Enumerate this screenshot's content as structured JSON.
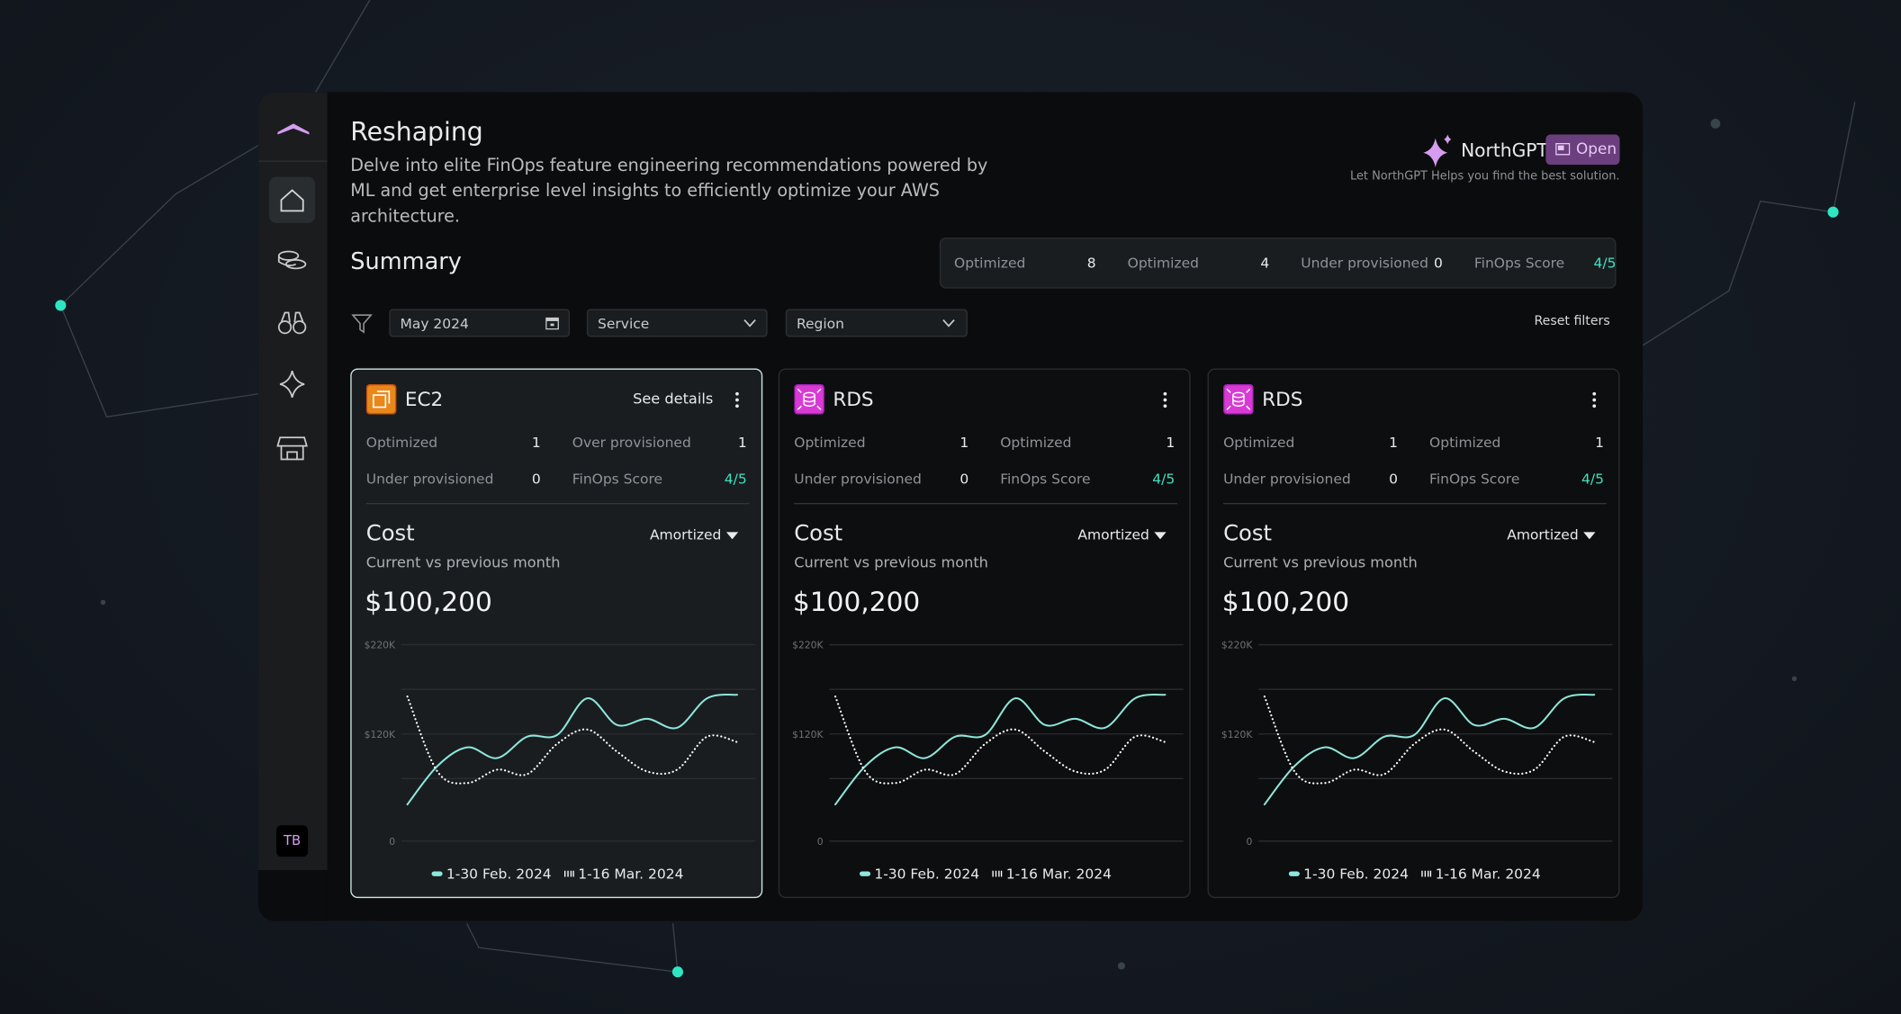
{
  "sidebar": {
    "avatar": "TB"
  },
  "header": {
    "title": "Reshaping",
    "description": "Delve into elite FinOps feature engineering recommendations powered by ML and get enterprise level insights to efficiently optimize your AWS architecture."
  },
  "assistant": {
    "name": "NorthGPT",
    "button": "Open",
    "hint": "Let NorthGPT Helps you find the best solution."
  },
  "summary": {
    "title": "Summary",
    "stats": [
      {
        "label": "Optimized",
        "value": 8
      },
      {
        "label": "Optimized",
        "value": 4
      },
      {
        "label": "Under provisioned",
        "value": 0
      },
      {
        "label": "FinOps Score",
        "value": "4/5"
      }
    ]
  },
  "filters": {
    "date": "May 2024",
    "service": "Service",
    "region": "Region",
    "reset": "Reset filters"
  },
  "cards": [
    {
      "service": "EC2",
      "icon": "ec2",
      "selected": true,
      "action": "See details",
      "stats": [
        {
          "label": "Optimized",
          "value": 1
        },
        {
          "label": "Over provisioned",
          "value": 1
        },
        {
          "label": "Under provisioned",
          "value": 0
        },
        {
          "label": "FinOps Score",
          "value": "4/5"
        }
      ],
      "cost_title": "Cost",
      "cost_mode": "Amortized",
      "cost_subtitle": "Current vs previous month",
      "cost_value": "$100,200"
    },
    {
      "service": "RDS",
      "icon": "rds",
      "selected": false,
      "stats": [
        {
          "label": "Optimized",
          "value": 1
        },
        {
          "label": "Optimized",
          "value": 1
        },
        {
          "label": "Under provisioned",
          "value": 0
        },
        {
          "label": "FinOps Score",
          "value": "4/5"
        }
      ],
      "cost_title": "Cost",
      "cost_mode": "Amortized",
      "cost_subtitle": "Current vs previous month",
      "cost_value": "$100,200"
    },
    {
      "service": "RDS",
      "icon": "rds",
      "selected": false,
      "stats": [
        {
          "label": "Optimized",
          "value": 1
        },
        {
          "label": "Optimized",
          "value": 1
        },
        {
          "label": "Under provisioned",
          "value": 0
        },
        {
          "label": "FinOps Score",
          "value": "4/5"
        }
      ],
      "cost_title": "Cost",
      "cost_mode": "Amortized",
      "cost_subtitle": "Current vs previous month",
      "cost_value": "$100,200"
    }
  ],
  "chart_data": [
    {
      "type": "line",
      "categories": [
        null,
        null,
        null,
        null,
        null,
        null,
        null,
        null,
        null,
        null,
        null,
        null
      ],
      "series": [
        {
          "name": "1-30 Feb. 2024",
          "color": "#8ee6dc",
          "style": "solid",
          "values": [
            41000,
            84000,
            105000,
            93000,
            117000,
            119000,
            160000,
            130000,
            137000,
            127000,
            160000,
            164000
          ]
        },
        {
          "name": "1-16 Mar. 2024",
          "color": "#ffffff",
          "style": "dotted",
          "values": [
            162000,
            78000,
            65000,
            80000,
            75000,
            109000,
            125000,
            100000,
            78000,
            80000,
            117000,
            111000
          ]
        }
      ],
      "ylim": [
        0,
        220000
      ],
      "yticks": [
        {
          "value": 220000,
          "label": "$220K"
        },
        {
          "value": 120000,
          "label": "$120K"
        },
        0
      ],
      "gridlines": [
        220000,
        170000,
        120000,
        70000,
        0
      ]
    },
    {
      "type": "line",
      "categories": [
        null,
        null,
        null,
        null,
        null,
        null,
        null,
        null,
        null,
        null,
        null,
        null
      ],
      "series": [
        {
          "name": "1-30 Feb. 2024",
          "color": "#8ee6dc",
          "style": "solid",
          "values": [
            41000,
            84000,
            105000,
            93000,
            117000,
            119000,
            160000,
            130000,
            137000,
            127000,
            160000,
            164000
          ]
        },
        {
          "name": "1-16 Mar. 2024",
          "color": "#ffffff",
          "style": "dotted",
          "values": [
            162000,
            78000,
            65000,
            80000,
            75000,
            109000,
            125000,
            100000,
            78000,
            80000,
            117000,
            111000
          ]
        }
      ],
      "ylim": [
        0,
        220000
      ],
      "yticks": [
        {
          "value": 220000,
          "label": "$220K"
        },
        {
          "value": 120000,
          "label": "$120K"
        },
        0
      ],
      "gridlines": [
        220000,
        170000,
        120000,
        70000,
        0
      ]
    },
    {
      "type": "line",
      "categories": [
        null,
        null,
        null,
        null,
        null,
        null,
        null,
        null,
        null,
        null,
        null,
        null
      ],
      "series": [
        {
          "name": "1-30 Feb. 2024",
          "color": "#8ee6dc",
          "style": "solid",
          "values": [
            41000,
            84000,
            105000,
            93000,
            117000,
            119000,
            160000,
            130000,
            137000,
            127000,
            160000,
            164000
          ]
        },
        {
          "name": "1-16 Mar. 2024",
          "color": "#ffffff",
          "style": "dotted",
          "values": [
            162000,
            78000,
            65000,
            80000,
            75000,
            109000,
            125000,
            100000,
            78000,
            80000,
            117000,
            111000
          ]
        }
      ],
      "ylim": [
        0,
        220000
      ],
      "yticks": [
        {
          "value": 220000,
          "label": "$220K"
        },
        {
          "value": 120000,
          "label": "$120K"
        },
        0
      ],
      "gridlines": [
        220000,
        170000,
        120000,
        70000,
        0
      ]
    }
  ]
}
